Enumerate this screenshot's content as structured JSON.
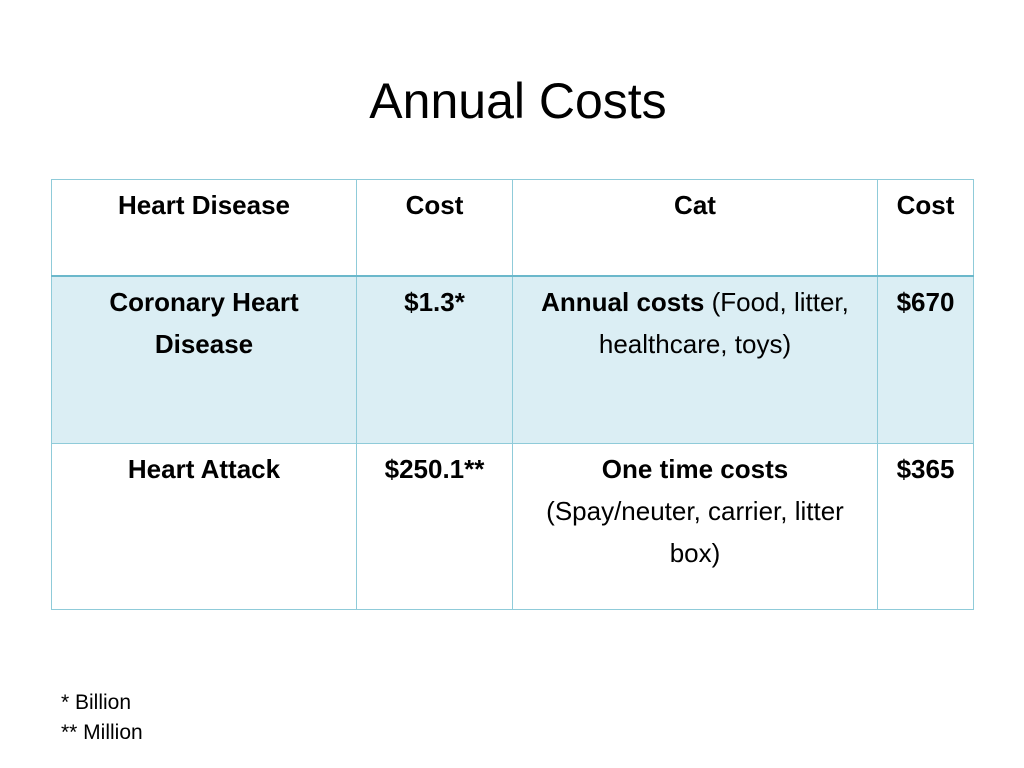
{
  "title": "Annual Costs",
  "table": {
    "headers": [
      "Heart Disease",
      "Cost",
      "Cat",
      "Cost"
    ],
    "rows": [
      {
        "heart_disease": "Coronary Heart Disease",
        "heart_cost": "$1.3*",
        "cat_bold": "Annual costs",
        "cat_detail": " (Food, litter, healthcare, toys)",
        "cat_cost": "$670"
      },
      {
        "heart_disease": "Heart Attack",
        "heart_cost": "$250.1**",
        "cat_bold": "One time costs",
        "cat_detail": "(Spay/neuter, carrier, litter box)",
        "cat_cost": "$365"
      }
    ]
  },
  "footnotes": [
    "* Billion",
    "** Million"
  ],
  "colors": {
    "border": "#8fcbd9",
    "band": "#dbeef4"
  }
}
